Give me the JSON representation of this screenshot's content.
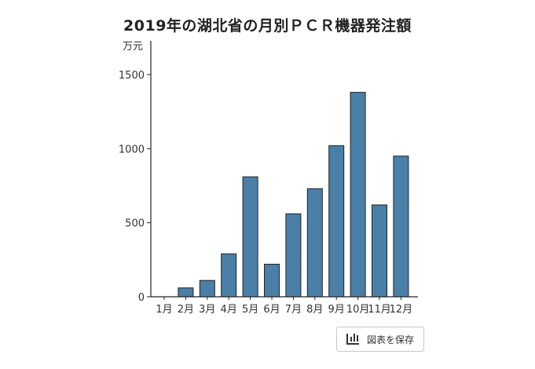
{
  "page": {
    "title": "2019年の湖北省の月別ＰＣＲ機器発注額",
    "save_button_label": "図表を保存",
    "save_icon": "bar-chart-icon"
  },
  "chart_data": {
    "type": "bar",
    "title": "2019年の湖北省の月別ＰＣＲ機器発注額",
    "ylabel": "万元",
    "xlabel": "",
    "categories": [
      "1月",
      "2月",
      "3月",
      "4月",
      "5月",
      "6月",
      "7月",
      "8月",
      "9月",
      "10月",
      "11月",
      "12月"
    ],
    "values": [
      0,
      60,
      110,
      290,
      810,
      220,
      560,
      730,
      1020,
      1380,
      620,
      950
    ],
    "ylim": [
      0,
      1500
    ],
    "yticks": [
      0,
      500,
      1000,
      1500
    ],
    "grid": false,
    "bar_color": "#4a7fa8",
    "bar_edge_color": "#222222"
  }
}
